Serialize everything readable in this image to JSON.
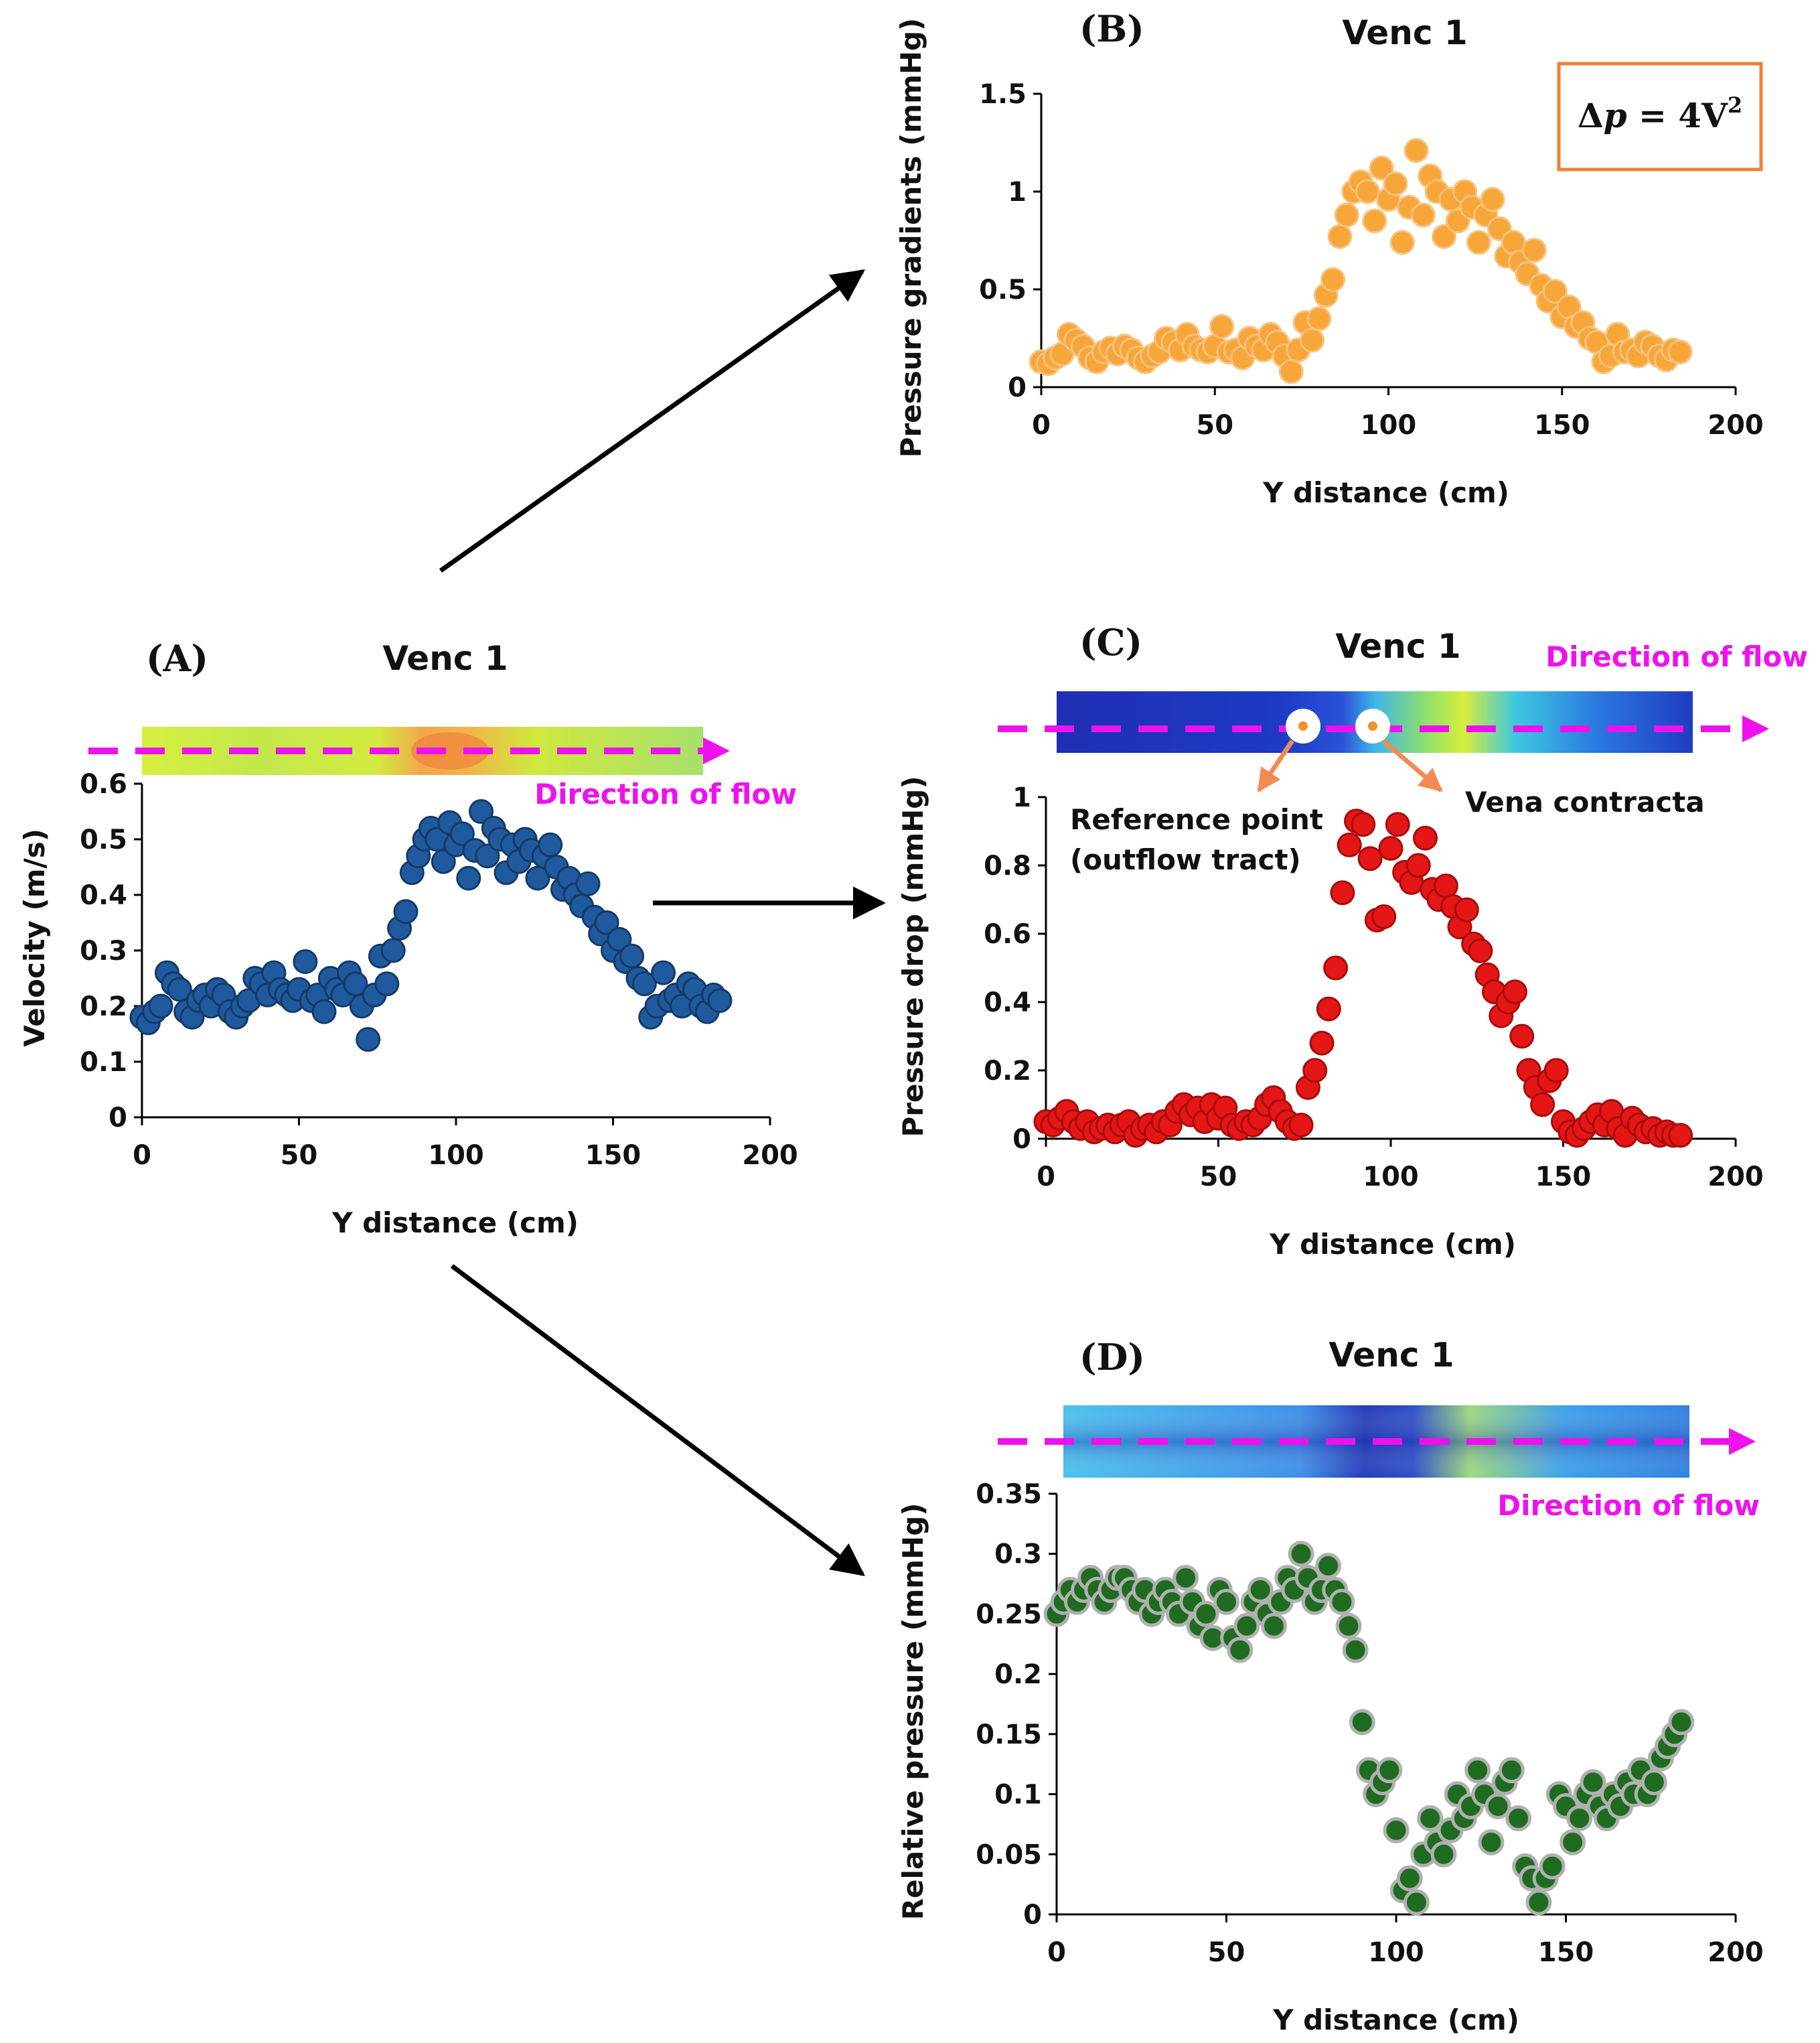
{
  "colors": {
    "A_fill": "#1f5a9e",
    "A_stroke": "#143a66",
    "B_fill": "#f7a63a",
    "B_stroke": "#f8c27c",
    "C_fill": "#e51616",
    "C_stroke": "#a80c0c",
    "D_fill": "#1f6b20",
    "D_stroke": "#b0b0b0",
    "flow": "#ee11ee",
    "annot_arrow": "#f48a52",
    "eq_border": "#f07f34"
  },
  "equation": {
    "prefix": "Δ",
    "var": "p",
    "rest": " = 4V",
    "sup": "2"
  },
  "annotations": {
    "reference_line1": "Reference point",
    "reference_line2": "(outflow tract)",
    "vena": "Vena contracta"
  },
  "chart_data": [
    {
      "id": "A",
      "panel_label": "(A)",
      "title": "Venc 1",
      "type": "scatter",
      "xlabel": "Y distance (cm)",
      "ylabel": "Velocity (m/s)",
      "xlim": [
        0,
        200
      ],
      "ylim": [
        0,
        0.6
      ],
      "xticks": [
        0,
        50,
        100,
        150,
        200
      ],
      "yticks": [
        0,
        0.1,
        0.2,
        0.3,
        0.4,
        0.5,
        0.6
      ],
      "ytick_labels": [
        "0",
        "0.1",
        "0.2",
        "0.3",
        "0.4",
        "0.5",
        "0.6"
      ],
      "flow_label": "Direction of flow",
      "x": [
        0,
        2,
        4,
        6,
        8,
        10,
        12,
        14,
        16,
        18,
        20,
        22,
        24,
        26,
        28,
        30,
        32,
        34,
        36,
        38,
        40,
        42,
        44,
        46,
        48,
        50,
        52,
        54,
        56,
        58,
        60,
        62,
        64,
        66,
        68,
        70,
        72,
        74,
        76,
        78,
        80,
        82,
        84,
        86,
        88,
        90,
        92,
        94,
        96,
        98,
        100,
        102,
        104,
        106,
        108,
        110,
        112,
        114,
        116,
        118,
        120,
        122,
        124,
        126,
        128,
        130,
        132,
        134,
        136,
        138,
        140,
        142,
        144,
        146,
        148,
        150,
        152,
        154,
        156,
        158,
        160,
        162,
        164,
        166,
        168,
        170,
        172,
        174,
        176,
        178,
        180,
        182,
        184
      ],
      "y": [
        0.18,
        0.17,
        0.19,
        0.2,
        0.26,
        0.24,
        0.23,
        0.19,
        0.18,
        0.21,
        0.22,
        0.2,
        0.23,
        0.22,
        0.19,
        0.18,
        0.2,
        0.21,
        0.25,
        0.24,
        0.22,
        0.26,
        0.23,
        0.22,
        0.21,
        0.23,
        0.28,
        0.21,
        0.22,
        0.19,
        0.25,
        0.23,
        0.22,
        0.26,
        0.24,
        0.2,
        0.14,
        0.22,
        0.29,
        0.24,
        0.3,
        0.34,
        0.37,
        0.44,
        0.47,
        0.5,
        0.52,
        0.5,
        0.46,
        0.53,
        0.49,
        0.51,
        0.43,
        0.48,
        0.55,
        0.47,
        0.52,
        0.5,
        0.44,
        0.49,
        0.46,
        0.5,
        0.48,
        0.43,
        0.47,
        0.49,
        0.45,
        0.41,
        0.43,
        0.4,
        0.38,
        0.42,
        0.36,
        0.33,
        0.35,
        0.3,
        0.32,
        0.28,
        0.29,
        0.25,
        0.24,
        0.18,
        0.2,
        0.26,
        0.21,
        0.22,
        0.2,
        0.24,
        0.23,
        0.2,
        0.19,
        0.22,
        0.21
      ]
    },
    {
      "id": "B",
      "panel_label": "(B)",
      "title": "Venc 1",
      "type": "scatter",
      "xlabel": "Y distance (cm)",
      "ylabel": "Pressure gradients (mmHg)",
      "xlim": [
        0,
        200
      ],
      "ylim": [
        0,
        1.5
      ],
      "xticks": [
        0,
        50,
        100,
        150,
        200
      ],
      "yticks": [
        0,
        0.5,
        1,
        1.5
      ],
      "ytick_labels": [
        "0",
        "0.5",
        "1",
        "1.5"
      ],
      "x": [
        0,
        2,
        4,
        6,
        8,
        10,
        12,
        14,
        16,
        18,
        20,
        22,
        24,
        26,
        28,
        30,
        32,
        34,
        36,
        38,
        40,
        42,
        44,
        46,
        48,
        50,
        52,
        54,
        56,
        58,
        60,
        62,
        64,
        66,
        68,
        70,
        72,
        74,
        76,
        78,
        80,
        82,
        84,
        86,
        88,
        90,
        92,
        94,
        96,
        98,
        100,
        102,
        104,
        106,
        108,
        110,
        112,
        114,
        116,
        118,
        120,
        122,
        124,
        126,
        128,
        130,
        132,
        134,
        136,
        138,
        140,
        142,
        144,
        146,
        148,
        150,
        152,
        154,
        156,
        158,
        160,
        162,
        164,
        166,
        168,
        170,
        172,
        174,
        176,
        178,
        180,
        182,
        184
      ],
      "y": [
        0.13,
        0.12,
        0.15,
        0.17,
        0.27,
        0.24,
        0.21,
        0.15,
        0.13,
        0.18,
        0.2,
        0.17,
        0.21,
        0.19,
        0.15,
        0.13,
        0.16,
        0.18,
        0.25,
        0.23,
        0.19,
        0.27,
        0.21,
        0.19,
        0.18,
        0.21,
        0.31,
        0.18,
        0.19,
        0.15,
        0.25,
        0.21,
        0.19,
        0.27,
        0.23,
        0.16,
        0.08,
        0.19,
        0.33,
        0.24,
        0.35,
        0.47,
        0.55,
        0.77,
        0.88,
        1,
        1.05,
        1,
        0.85,
        1.12,
        0.96,
        1.04,
        0.74,
        0.92,
        1.21,
        0.88,
        1.08,
        1,
        0.77,
        0.96,
        0.85,
        1,
        0.92,
        0.74,
        0.88,
        0.96,
        0.81,
        0.67,
        0.74,
        0.64,
        0.58,
        0.7,
        0.52,
        0.44,
        0.49,
        0.36,
        0.41,
        0.31,
        0.33,
        0.25,
        0.23,
        0.13,
        0.16,
        0.27,
        0.18,
        0.19,
        0.16,
        0.23,
        0.21,
        0.16,
        0.14,
        0.19,
        0.18
      ]
    },
    {
      "id": "C",
      "panel_label": "(C)",
      "title": "Venc 1",
      "type": "scatter",
      "xlabel": "Y distance (cm)",
      "ylabel": "Pressure drop (mmHg)",
      "xlim": [
        0,
        200
      ],
      "ylim": [
        0,
        1
      ],
      "xticks": [
        0,
        50,
        100,
        150,
        200
      ],
      "yticks": [
        0,
        0.2,
        0.4,
        0.6,
        0.8,
        1
      ],
      "ytick_labels": [
        "0",
        "0.2",
        "0.4",
        "0.6",
        "0.8",
        "1"
      ],
      "flow_label": "Direction of flow",
      "x": [
        0,
        2,
        4,
        6,
        8,
        10,
        12,
        14,
        16,
        18,
        20,
        22,
        24,
        26,
        28,
        30,
        32,
        34,
        36,
        38,
        40,
        42,
        44,
        46,
        48,
        50,
        52,
        54,
        56,
        58,
        60,
        62,
        64,
        66,
        68,
        70,
        72,
        74,
        76,
        78,
        80,
        82,
        84,
        86,
        88,
        90,
        92,
        94,
        96,
        98,
        100,
        102,
        104,
        106,
        108,
        110,
        112,
        114,
        116,
        118,
        120,
        122,
        124,
        126,
        128,
        130,
        132,
        134,
        136,
        138,
        140,
        142,
        144,
        146,
        148,
        150,
        152,
        154,
        156,
        158,
        160,
        162,
        164,
        166,
        168,
        170,
        172,
        174,
        176,
        178,
        180,
        182,
        184
      ],
      "y": [
        0.05,
        0.04,
        0.06,
        0.08,
        0.05,
        0.03,
        0.05,
        0.02,
        0.03,
        0.04,
        0.02,
        0.04,
        0.05,
        0.01,
        0.03,
        0.04,
        0.02,
        0.05,
        0.04,
        0.08,
        0.1,
        0.07,
        0.09,
        0.05,
        0.1,
        0.06,
        0.09,
        0.04,
        0.03,
        0.05,
        0.04,
        0.06,
        0.1,
        0.12,
        0.08,
        0.05,
        0.03,
        0.04,
        0.15,
        0.2,
        0.28,
        0.38,
        0.5,
        0.72,
        0.86,
        0.93,
        0.92,
        0.82,
        0.64,
        0.65,
        0.85,
        0.92,
        0.78,
        0.75,
        0.8,
        0.88,
        0.73,
        0.7,
        0.74,
        0.68,
        0.62,
        0.67,
        0.57,
        0.55,
        0.48,
        0.43,
        0.36,
        0.4,
        0.43,
        0.3,
        0.2,
        0.15,
        0.1,
        0.17,
        0.2,
        0.05,
        0.02,
        0.01,
        0.03,
        0.05,
        0.07,
        0.04,
        0.08,
        0.03,
        0.01,
        0.06,
        0.04,
        0.02,
        0.03,
        0.01,
        0.02,
        0.01,
        0.01
      ]
    },
    {
      "id": "D",
      "panel_label": "(D)",
      "title": "Venc 1",
      "type": "scatter",
      "xlabel": "Y distance (cm)",
      "ylabel": "Relative pressure (mmHg)",
      "xlim": [
        0,
        200
      ],
      "ylim": [
        0,
        0.35
      ],
      "xticks": [
        0,
        50,
        100,
        150,
        200
      ],
      "yticks": [
        0,
        0.05,
        0.1,
        0.15,
        0.2,
        0.25,
        0.3,
        0.35
      ],
      "ytick_labels": [
        "0",
        "0.05",
        "0.1",
        "0.15",
        "0.2",
        "0.25",
        "0.3",
        "0.35"
      ],
      "flow_label": "Direction of flow",
      "x": [
        0,
        2,
        4,
        6,
        8,
        10,
        12,
        14,
        16,
        18,
        20,
        22,
        24,
        26,
        28,
        30,
        32,
        34,
        36,
        38,
        40,
        42,
        44,
        46,
        48,
        50,
        52,
        54,
        56,
        58,
        60,
        62,
        64,
        66,
        68,
        70,
        72,
        74,
        76,
        78,
        80,
        82,
        84,
        86,
        88,
        90,
        92,
        94,
        96,
        98,
        100,
        102,
        104,
        106,
        108,
        110,
        112,
        114,
        116,
        118,
        120,
        122,
        124,
        126,
        128,
        130,
        132,
        134,
        136,
        138,
        140,
        142,
        144,
        146,
        148,
        150,
        152,
        154,
        156,
        158,
        160,
        162,
        164,
        166,
        168,
        170,
        172,
        174,
        176,
        178,
        180,
        182,
        184
      ],
      "y": [
        0.25,
        0.26,
        0.27,
        0.26,
        0.27,
        0.28,
        0.27,
        0.26,
        0.27,
        0.28,
        0.28,
        0.27,
        0.26,
        0.27,
        0.25,
        0.26,
        0.27,
        0.26,
        0.25,
        0.28,
        0.26,
        0.24,
        0.25,
        0.23,
        0.27,
        0.26,
        0.23,
        0.22,
        0.24,
        0.26,
        0.27,
        0.25,
        0.24,
        0.26,
        0.28,
        0.27,
        0.3,
        0.28,
        0.26,
        0.27,
        0.29,
        0.27,
        0.26,
        0.24,
        0.22,
        0.16,
        0.12,
        0.1,
        0.11,
        0.12,
        0.07,
        0.02,
        0.03,
        0.01,
        0.05,
        0.08,
        0.06,
        0.05,
        0.07,
        0.1,
        0.08,
        0.09,
        0.12,
        0.1,
        0.06,
        0.09,
        0.11,
        0.12,
        0.08,
        0.04,
        0.03,
        0.01,
        0.03,
        0.04,
        0.1,
        0.09,
        0.06,
        0.08,
        0.1,
        0.11,
        0.09,
        0.08,
        0.1,
        0.09,
        0.11,
        0.1,
        0.12,
        0.1,
        0.11,
        0.13,
        0.14,
        0.15,
        0.16
      ]
    }
  ]
}
